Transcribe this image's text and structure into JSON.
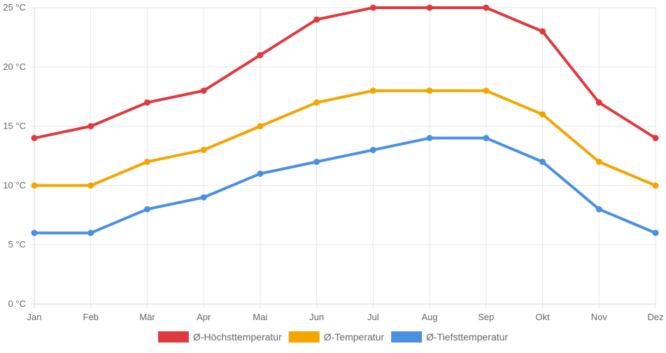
{
  "chart_data": {
    "type": "line",
    "categories": [
      "Jan",
      "Feb",
      "Mär",
      "Apr",
      "Mai",
      "Jun",
      "Jul",
      "Aug",
      "Sep",
      "Okt",
      "Nov",
      "Dez"
    ],
    "y_ticks": [
      "0 °C",
      "5 °C",
      "10 °C",
      "15 °C",
      "20 °C",
      "25 °C"
    ],
    "ylim": [
      0,
      25
    ],
    "grid": true,
    "legend_position": "bottom",
    "series": [
      {
        "name": "Ø-Höchsttemperatur",
        "color": "#e0393e",
        "values": [
          14,
          15,
          17,
          18,
          21,
          24,
          25,
          25,
          25,
          23,
          17,
          14
        ]
      },
      {
        "name": "Ø-Temperatur",
        "color": "#f5a500",
        "values": [
          10,
          10,
          12,
          13,
          15,
          17,
          18,
          18,
          18,
          16,
          12,
          10
        ]
      },
      {
        "name": "Ø-Tiefsttemperatur",
        "color": "#4a90e2",
        "values": [
          6,
          6,
          8,
          9,
          11,
          12,
          13,
          14,
          14,
          12,
          8,
          6
        ]
      }
    ]
  }
}
